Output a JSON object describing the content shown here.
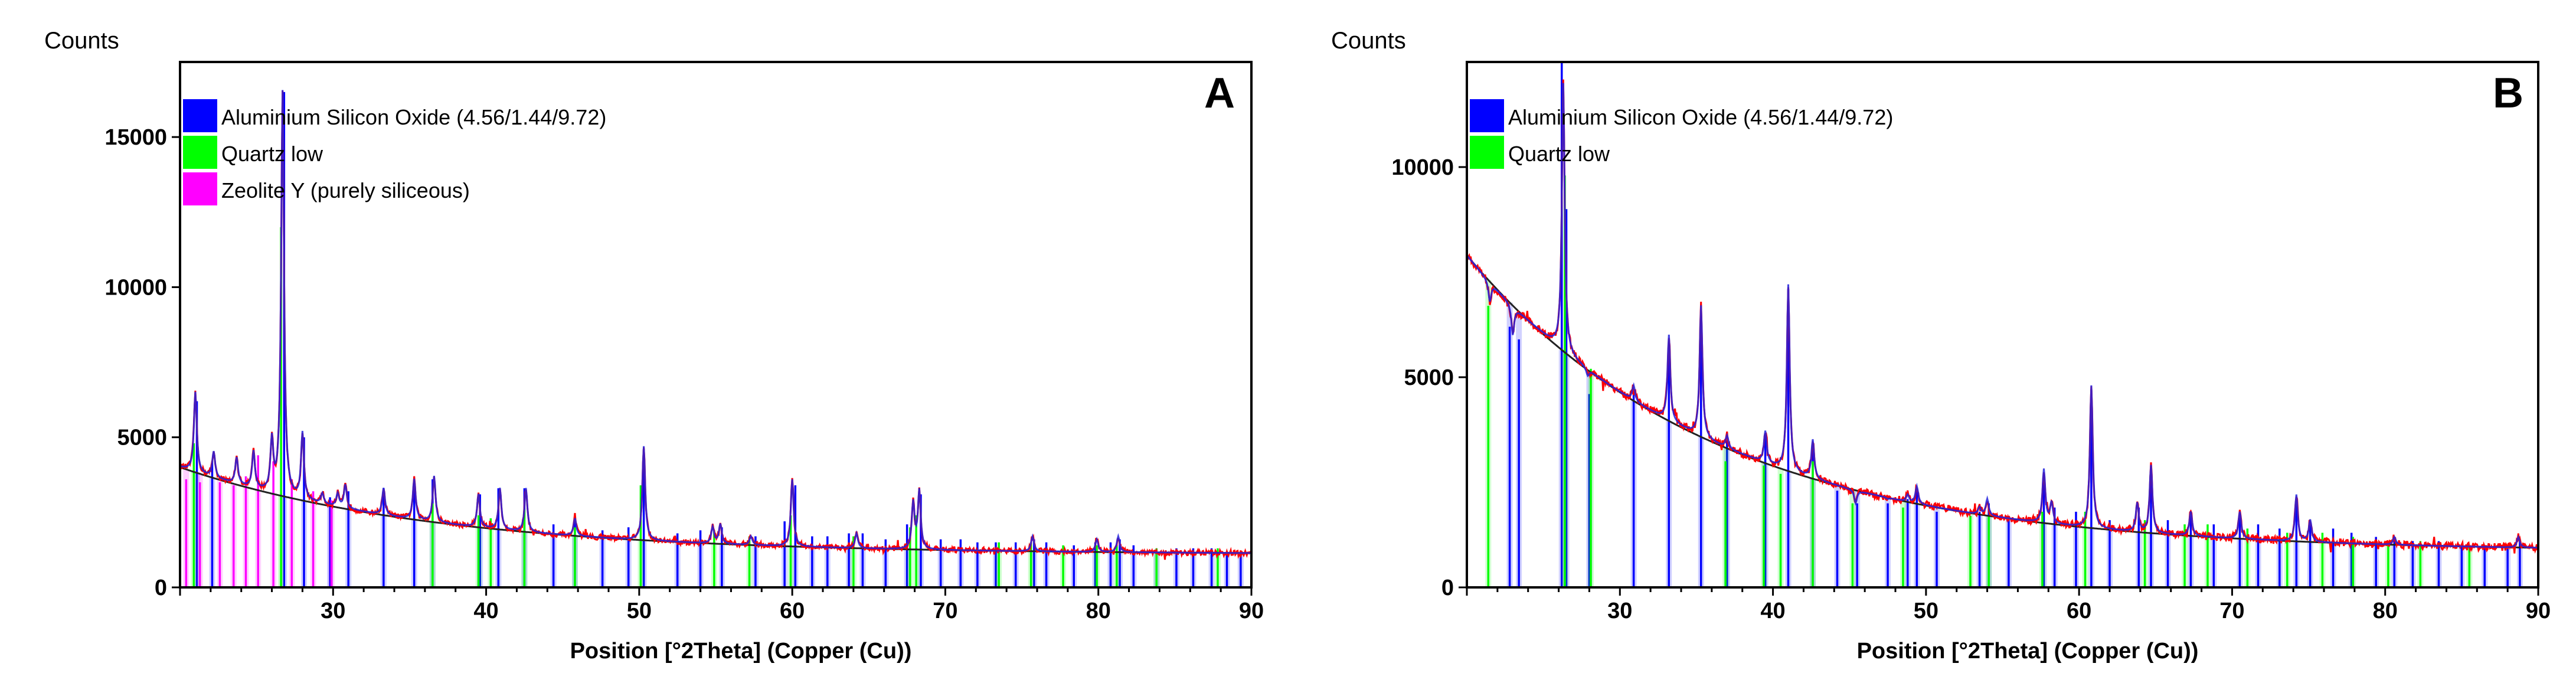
{
  "chart_data": [
    {
      "type": "line",
      "panel_label": "A",
      "ylabel": "Counts",
      "xlabel": "Position [°2Theta] (Copper (Cu))",
      "xlim": [
        20,
        90
      ],
      "ylim": [
        0,
        17500
      ],
      "x_ticks": [
        "30",
        "40",
        "50",
        "60",
        "70",
        "80",
        "90"
      ],
      "x_tick_values": [
        30,
        40,
        50,
        60,
        70,
        80,
        90
      ],
      "y_ticks": [
        "0",
        "5000",
        "10000",
        "15000"
      ],
      "y_tick_values": [
        0,
        5000,
        10000,
        15000
      ],
      "legend": [
        {
          "label": "Aluminium Silicon Oxide (4.56/1.44/9.72)",
          "color": "#0000ff"
        },
        {
          "label": "Quartz low",
          "color": "#00ff00"
        },
        {
          "label": "Zeolite Y (purely siliceous)",
          "color": "#ff00ff"
        }
      ],
      "background": {
        "start": 4000,
        "end": 1100,
        "decay": 0.06
      },
      "peaks": [
        [
          21.0,
          6500
        ],
        [
          22.2,
          4500
        ],
        [
          23.7,
          4300
        ],
        [
          24.8,
          4500
        ],
        [
          26.0,
          4800
        ],
        [
          26.7,
          16500
        ],
        [
          28.0,
          5100
        ],
        [
          29.3,
          3100
        ],
        [
          30.3,
          3100
        ],
        [
          30.8,
          3400
        ],
        [
          33.3,
          3300
        ],
        [
          35.3,
          3600
        ],
        [
          36.6,
          3700
        ],
        [
          39.5,
          3100
        ],
        [
          40.9,
          3300
        ],
        [
          42.6,
          3300
        ],
        [
          45.8,
          2300
        ],
        [
          50.3,
          4700
        ],
        [
          54.8,
          2000
        ],
        [
          55.3,
          2100
        ],
        [
          57.3,
          1700
        ],
        [
          60.0,
          3600
        ],
        [
          64.2,
          1800
        ],
        [
          67.9,
          2800
        ],
        [
          68.3,
          3200
        ],
        [
          75.7,
          1700
        ],
        [
          79.9,
          1600
        ],
        [
          81.3,
          1700
        ]
      ],
      "series": [
        {
          "name": "Aluminium Silicon Oxide (4.56/1.44/9.72)",
          "color": "#0000ff",
          "sticks": [
            [
              21.1,
              6200
            ],
            [
              22.1,
              4200
            ],
            [
              26.8,
              16500
            ],
            [
              28.1,
              5000
            ],
            [
              29.8,
              3000
            ],
            [
              31.0,
              3200
            ],
            [
              33.3,
              3300
            ],
            [
              35.3,
              3500
            ],
            [
              36.5,
              3600
            ],
            [
              39.6,
              3100
            ],
            [
              40.8,
              3300
            ],
            [
              42.5,
              3300
            ],
            [
              44.4,
              2100
            ],
            [
              45.8,
              2300
            ],
            [
              47.6,
              1900
            ],
            [
              49.3,
              2000
            ],
            [
              50.3,
              4600
            ],
            [
              52.5,
              1800
            ],
            [
              54.0,
              1900
            ],
            [
              55.4,
              2000
            ],
            [
              57.6,
              1700
            ],
            [
              59.5,
              2200
            ],
            [
              60.2,
              3400
            ],
            [
              61.3,
              1700
            ],
            [
              62.3,
              1700
            ],
            [
              63.7,
              1800
            ],
            [
              64.6,
              1800
            ],
            [
              66.1,
              1600
            ],
            [
              67.5,
              2100
            ],
            [
              68.4,
              3100
            ],
            [
              69.7,
              1600
            ],
            [
              71.0,
              1600
            ],
            [
              72.1,
              1500
            ],
            [
              73.3,
              1500
            ],
            [
              74.6,
              1500
            ],
            [
              75.8,
              1600
            ],
            [
              76.6,
              1500
            ],
            [
              78.4,
              1400
            ],
            [
              79.8,
              1500
            ],
            [
              80.8,
              1500
            ],
            [
              81.4,
              1600
            ],
            [
              82.3,
              1400
            ],
            [
              83.8,
              1300
            ],
            [
              85.1,
              1300
            ],
            [
              86.2,
              1300
            ],
            [
              87.4,
              1300
            ],
            [
              88.4,
              1200
            ],
            [
              89.3,
              1200
            ]
          ]
        },
        {
          "name": "Quartz low",
          "color": "#00ff00",
          "sticks": [
            [
              20.9,
              4800
            ],
            [
              26.6,
              12000
            ],
            [
              36.5,
              2800
            ],
            [
              39.5,
              2400
            ],
            [
              40.3,
              2300
            ],
            [
              42.5,
              2600
            ],
            [
              45.8,
              2000
            ],
            [
              50.1,
              3400
            ],
            [
              54.9,
              1900
            ],
            [
              57.2,
              1700
            ],
            [
              59.9,
              2400
            ],
            [
              64.0,
              1700
            ],
            [
              67.7,
              2000
            ],
            [
              68.1,
              2400
            ],
            [
              73.5,
              1500
            ],
            [
              75.6,
              1500
            ],
            [
              77.7,
              1400
            ],
            [
              79.9,
              1400
            ],
            [
              81.2,
              1400
            ],
            [
              83.8,
              1300
            ],
            [
              87.8,
              1300
            ]
          ]
        },
        {
          "name": "Zeolite Y (purely siliceous)",
          "color": "#ff00ff",
          "sticks": [
            [
              20.4,
              3600
            ],
            [
              21.3,
              3500
            ],
            [
              22.6,
              3500
            ],
            [
              23.5,
              3400
            ],
            [
              24.3,
              3700
            ],
            [
              25.1,
              4400
            ],
            [
              26.1,
              4200
            ],
            [
              27.3,
              3600
            ],
            [
              28.7,
              3200
            ],
            [
              29.9,
              2900
            ]
          ]
        }
      ]
    },
    {
      "type": "line",
      "panel_label": "B",
      "ylabel": "Counts",
      "xlabel": "Position [°2Theta] (Copper (Cu))",
      "xlim": [
        20,
        90
      ],
      "ylim": [
        0,
        12500
      ],
      "x_ticks": [
        "30",
        "40",
        "50",
        "60",
        "70",
        "80",
        "90"
      ],
      "x_tick_values": [
        30,
        40,
        50,
        60,
        70,
        80,
        90
      ],
      "y_ticks": [
        "0",
        "5000",
        "10000"
      ],
      "y_tick_values": [
        0,
        5000,
        10000
      ],
      "legend": [
        {
          "label": "Aluminium Silicon Oxide (4.56/1.44/9.72)",
          "color": "#0000ff"
        },
        {
          "label": "Quartz low",
          "color": "#00ff00"
        }
      ],
      "background": {
        "start": 7900,
        "end": 850,
        "decay": 0.062
      },
      "peaks": [
        [
          21.5,
          6800
        ],
        [
          23.0,
          6000
        ],
        [
          26.3,
          12000
        ],
        [
          27.9,
          5000
        ],
        [
          30.9,
          4800
        ],
        [
          33.2,
          6000
        ],
        [
          35.3,
          6700
        ],
        [
          37.0,
          3600
        ],
        [
          39.5,
          3700
        ],
        [
          41.0,
          7200
        ],
        [
          42.6,
          3500
        ],
        [
          45.4,
          2000
        ],
        [
          47.5,
          2100
        ],
        [
          48.8,
          2200
        ],
        [
          49.4,
          2400
        ],
        [
          53.5,
          1900
        ],
        [
          54.0,
          2100
        ],
        [
          57.7,
          2800
        ],
        [
          58.2,
          2000
        ],
        [
          60.8,
          4800
        ],
        [
          63.8,
          2000
        ],
        [
          64.7,
          2900
        ],
        [
          67.3,
          1800
        ],
        [
          70.5,
          1800
        ],
        [
          74.2,
          2200
        ],
        [
          75.1,
          1600
        ],
        [
          80.6,
          1200
        ],
        [
          88.7,
          1200
        ]
      ],
      "series": [
        {
          "name": "Aluminium Silicon Oxide (4.56/1.44/9.72)",
          "color": "#0000ff",
          "sticks": [
            [
              22.8,
              6200
            ],
            [
              23.4,
              5900
            ],
            [
              26.2,
              12500
            ],
            [
              26.5,
              9000
            ],
            [
              28.0,
              4600
            ],
            [
              30.9,
              4700
            ],
            [
              33.2,
              5900
            ],
            [
              35.3,
              6600
            ],
            [
              37.0,
              3500
            ],
            [
              39.5,
              3600
            ],
            [
              41.0,
              7100
            ],
            [
              42.6,
              3400
            ],
            [
              44.2,
              2300
            ],
            [
              45.5,
              2000
            ],
            [
              47.5,
              2000
            ],
            [
              48.8,
              2100
            ],
            [
              49.4,
              2300
            ],
            [
              50.7,
              1800
            ],
            [
              53.5,
              1800
            ],
            [
              54.1,
              2000
            ],
            [
              55.4,
              1700
            ],
            [
              57.7,
              2700
            ],
            [
              58.4,
              1900
            ],
            [
              59.8,
              1800
            ],
            [
              60.8,
              4700
            ],
            [
              62.0,
              1600
            ],
            [
              63.9,
              1900
            ],
            [
              64.7,
              2800
            ],
            [
              65.8,
              1600
            ],
            [
              67.3,
              1700
            ],
            [
              68.8,
              1500
            ],
            [
              70.5,
              1700
            ],
            [
              71.7,
              1500
            ],
            [
              73.1,
              1400
            ],
            [
              74.2,
              2100
            ],
            [
              75.1,
              1500
            ],
            [
              76.6,
              1400
            ],
            [
              77.8,
              1300
            ],
            [
              79.4,
              1200
            ],
            [
              80.6,
              1200
            ],
            [
              81.8,
              1100
            ],
            [
              83.5,
              1100
            ],
            [
              85.0,
              1000
            ],
            [
              86.5,
              1000
            ],
            [
              88.0,
              1000
            ],
            [
              88.8,
              1100
            ]
          ]
        },
        {
          "name": "Quartz low",
          "color": "#00ff00",
          "sticks": [
            [
              21.4,
              6700
            ],
            [
              26.4,
              9800
            ],
            [
              28.1,
              5200
            ],
            [
              36.9,
              3000
            ],
            [
              39.4,
              2900
            ],
            [
              40.5,
              2700
            ],
            [
              42.6,
              3000
            ],
            [
              45.2,
              2000
            ],
            [
              48.5,
              1900
            ],
            [
              52.9,
              1700
            ],
            [
              54.1,
              1700
            ],
            [
              57.6,
              1800
            ],
            [
              60.4,
              1800
            ],
            [
              64.3,
              1600
            ],
            [
              66.9,
              1500
            ],
            [
              68.4,
              1500
            ],
            [
              71.0,
              1400
            ],
            [
              73.6,
              1300
            ],
            [
              75.9,
              1300
            ],
            [
              77.9,
              1200
            ],
            [
              80.2,
              1100
            ],
            [
              82.3,
              1100
            ],
            [
              85.5,
              1000
            ]
          ]
        }
      ]
    }
  ]
}
